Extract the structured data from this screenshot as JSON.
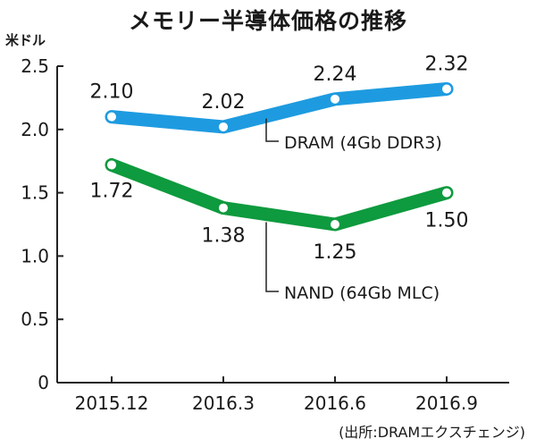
{
  "chart_data": {
    "type": "line",
    "title": "メモリー半導体価格の推移",
    "unit_label": "米ドル",
    "source": "(出所:DRAMエクスチェンジ)",
    "categories": [
      "2015.12",
      "2016.3",
      "2016.6",
      "2016.9"
    ],
    "ylim": [
      0,
      2.5
    ],
    "yticks": [
      "0",
      "0.5",
      "1.0",
      "1.5",
      "2.0",
      "2.5"
    ],
    "grid": false,
    "series": [
      {
        "name": "DRAM (4Gb DDR3)",
        "values": [
          2.1,
          2.02,
          2.24,
          2.32
        ],
        "labels": [
          "2.10",
          "2.02",
          "2.24",
          "2.32"
        ],
        "color": "#1e9be0"
      },
      {
        "name": "NAND (64Gb MLC)",
        "values": [
          1.72,
          1.38,
          1.25,
          1.5
        ],
        "labels": [
          "1.72",
          "1.38",
          "1.25",
          "1.50"
        ],
        "color": "#0e9a3e"
      }
    ]
  }
}
